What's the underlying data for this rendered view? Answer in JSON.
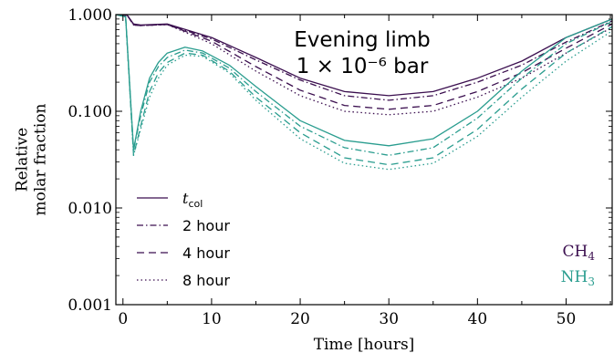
{
  "chart_data": {
    "type": "line",
    "title": "Evening limb",
    "subtitle": "1 × 10⁻⁶ bar",
    "xlabel": "Time [hours]",
    "ylabel": "Relative molar fraction",
    "xlim": [
      -0.8,
      55.2
    ],
    "ylim": [
      0.001,
      1.0
    ],
    "yscale": "log",
    "x_ticks": [
      0,
      10,
      20,
      30,
      40,
      50
    ],
    "x_tick_labels": [
      "0",
      "10",
      "20",
      "30",
      "40",
      "50"
    ],
    "y_ticks": [
      0.001,
      0.01,
      0.1,
      1.0
    ],
    "y_tick_labels": [
      "0.001",
      "0.010",
      "0.100",
      "1.000"
    ],
    "legend": {
      "placement": "lower-left",
      "entries": [
        {
          "label": "t_col",
          "label_main": "t",
          "label_sub": "col",
          "linestyle": "solid"
        },
        {
          "label": "2 hour",
          "linestyle": "dashdot"
        },
        {
          "label": "4 hour",
          "linestyle": "dashed"
        },
        {
          "label": "8 hour",
          "linestyle": "dotted"
        }
      ]
    },
    "species_labels": [
      {
        "text": "CH4",
        "main": "CH",
        "sub": "4",
        "color": "#3b0f4f"
      },
      {
        "text": "NH3",
        "main": "NH",
        "sub": "3",
        "color": "#2a9d8f"
      }
    ],
    "series": [
      {
        "species": "CH4",
        "case": "t_col",
        "color": "#3b0f4f",
        "linestyle": "solid",
        "points": [
          [
            -0.8,
            1.0
          ],
          [
            0.5,
            0.98
          ],
          [
            1.2,
            0.8
          ],
          [
            2,
            0.78
          ],
          [
            5,
            0.8
          ],
          [
            10,
            0.58
          ],
          [
            15,
            0.36
          ],
          [
            20,
            0.22
          ],
          [
            25,
            0.16
          ],
          [
            30,
            0.145
          ],
          [
            35,
            0.16
          ],
          [
            40,
            0.22
          ],
          [
            45,
            0.33
          ],
          [
            50,
            0.58
          ],
          [
            55.2,
            0.9
          ]
        ]
      },
      {
        "species": "CH4",
        "case": "2 hour",
        "color": "#3b0f4f",
        "linestyle": "dashdot",
        "points": [
          [
            -0.8,
            1.0
          ],
          [
            0.5,
            0.98
          ],
          [
            1.2,
            0.78
          ],
          [
            2,
            0.77
          ],
          [
            5,
            0.79
          ],
          [
            10,
            0.56
          ],
          [
            15,
            0.34
          ],
          [
            20,
            0.21
          ],
          [
            25,
            0.145
          ],
          [
            30,
            0.13
          ],
          [
            35,
            0.145
          ],
          [
            40,
            0.2
          ],
          [
            45,
            0.3
          ],
          [
            50,
            0.52
          ],
          [
            55.2,
            0.86
          ]
        ]
      },
      {
        "species": "CH4",
        "case": "4 hour",
        "color": "#3b0f4f",
        "linestyle": "dashed",
        "points": [
          [
            -0.8,
            1.0
          ],
          [
            0.5,
            0.98
          ],
          [
            1.2,
            0.78
          ],
          [
            2,
            0.77
          ],
          [
            5,
            0.79
          ],
          [
            10,
            0.53
          ],
          [
            15,
            0.29
          ],
          [
            20,
            0.165
          ],
          [
            25,
            0.115
          ],
          [
            30,
            0.105
          ],
          [
            35,
            0.115
          ],
          [
            40,
            0.16
          ],
          [
            45,
            0.25
          ],
          [
            50,
            0.45
          ],
          [
            55.2,
            0.8
          ]
        ]
      },
      {
        "species": "CH4",
        "case": "8 hour",
        "color": "#3b0f4f",
        "linestyle": "dotted",
        "points": [
          [
            -0.8,
            1.0
          ],
          [
            0.5,
            0.98
          ],
          [
            1.2,
            0.78
          ],
          [
            2,
            0.77
          ],
          [
            5,
            0.79
          ],
          [
            10,
            0.5
          ],
          [
            15,
            0.26
          ],
          [
            20,
            0.145
          ],
          [
            25,
            0.1
          ],
          [
            30,
            0.092
          ],
          [
            35,
            0.1
          ],
          [
            40,
            0.14
          ],
          [
            45,
            0.22
          ],
          [
            50,
            0.4
          ],
          [
            55.2,
            0.74
          ]
        ]
      },
      {
        "species": "NH3",
        "case": "t_col",
        "color": "#2a9d8f",
        "linestyle": "solid",
        "points": [
          [
            -0.8,
            1.0
          ],
          [
            0.3,
            0.95
          ],
          [
            1.2,
            0.04
          ],
          [
            2,
            0.1
          ],
          [
            3,
            0.22
          ],
          [
            4,
            0.32
          ],
          [
            5,
            0.4
          ],
          [
            7,
            0.46
          ],
          [
            9,
            0.42
          ],
          [
            12,
            0.3
          ],
          [
            15,
            0.18
          ],
          [
            20,
            0.08
          ],
          [
            25,
            0.05
          ],
          [
            30,
            0.044
          ],
          [
            35,
            0.052
          ],
          [
            40,
            0.1
          ],
          [
            45,
            0.26
          ],
          [
            50,
            0.58
          ],
          [
            55.2,
            0.9
          ]
        ]
      },
      {
        "species": "NH3",
        "case": "2 hour",
        "color": "#2a9d8f",
        "linestyle": "dashdot",
        "points": [
          [
            -0.8,
            1.0
          ],
          [
            0.3,
            0.95
          ],
          [
            1.2,
            0.04
          ],
          [
            2,
            0.09
          ],
          [
            3,
            0.2
          ],
          [
            4,
            0.29
          ],
          [
            5,
            0.36
          ],
          [
            7,
            0.43
          ],
          [
            9,
            0.4
          ],
          [
            12,
            0.28
          ],
          [
            15,
            0.16
          ],
          [
            20,
            0.07
          ],
          [
            25,
            0.042
          ],
          [
            30,
            0.035
          ],
          [
            35,
            0.042
          ],
          [
            40,
            0.085
          ],
          [
            45,
            0.22
          ],
          [
            50,
            0.5
          ],
          [
            55.2,
            0.85
          ]
        ]
      },
      {
        "species": "NH3",
        "case": "4 hour",
        "color": "#2a9d8f",
        "linestyle": "dashed",
        "points": [
          [
            -0.8,
            1.0
          ],
          [
            0.3,
            0.95
          ],
          [
            1.2,
            0.035
          ],
          [
            2,
            0.07
          ],
          [
            3,
            0.16
          ],
          [
            4,
            0.25
          ],
          [
            5,
            0.32
          ],
          [
            7,
            0.4
          ],
          [
            9,
            0.38
          ],
          [
            12,
            0.26
          ],
          [
            15,
            0.14
          ],
          [
            20,
            0.06
          ],
          [
            25,
            0.033
          ],
          [
            30,
            0.028
          ],
          [
            35,
            0.033
          ],
          [
            40,
            0.065
          ],
          [
            45,
            0.17
          ],
          [
            50,
            0.4
          ],
          [
            55.2,
            0.75
          ]
        ]
      },
      {
        "species": "NH3",
        "case": "8 hour",
        "color": "#2a9d8f",
        "linestyle": "dotted",
        "points": [
          [
            -0.8,
            1.0
          ],
          [
            0.3,
            0.95
          ],
          [
            1.2,
            0.035
          ],
          [
            2,
            0.065
          ],
          [
            3,
            0.14
          ],
          [
            4,
            0.22
          ],
          [
            5,
            0.3
          ],
          [
            7,
            0.38
          ],
          [
            9,
            0.37
          ],
          [
            12,
            0.25
          ],
          [
            15,
            0.13
          ],
          [
            20,
            0.052
          ],
          [
            25,
            0.029
          ],
          [
            30,
            0.025
          ],
          [
            35,
            0.029
          ],
          [
            40,
            0.055
          ],
          [
            45,
            0.14
          ],
          [
            50,
            0.33
          ],
          [
            55.2,
            0.68
          ]
        ]
      }
    ]
  }
}
